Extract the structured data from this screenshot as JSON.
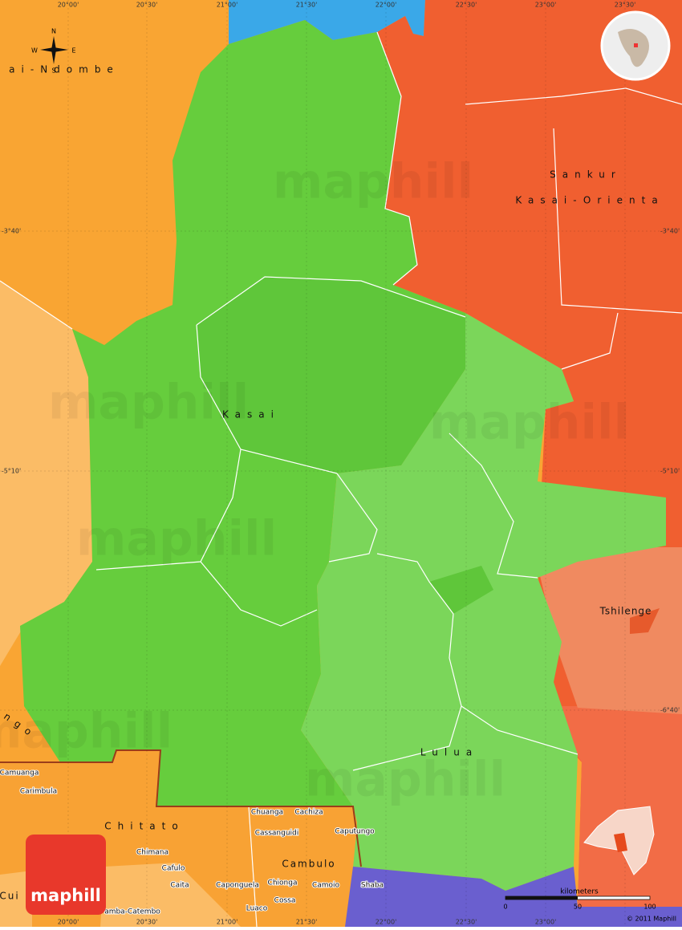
{
  "grid": {
    "longitudes": [
      "20°00'",
      "20°30'",
      "21°00'",
      "21°30'",
      "22°00'",
      "22°30'",
      "23°00'",
      "23°30'"
    ],
    "latitudes": [
      "-3°40'",
      "-5°10'",
      "-6°40'"
    ]
  },
  "regions": [
    "ai-Ndombe",
    "Sankur",
    "Kasai-Orienta",
    "Kasai",
    "Lulua",
    "Tshilenge",
    "ngo",
    "Chitato",
    "Cambulo",
    "Cui"
  ],
  "towns": [
    "Camuanga",
    "Carimbula",
    "Chimana",
    "Cafulo",
    "Caita",
    "amba-Catembo",
    "Caponguela",
    "Chionga",
    "Luaco",
    "Cossa",
    "Camoio",
    "Chuanga",
    "Cachiza",
    "Cassanguidi",
    "Caputungo",
    "Shaba"
  ],
  "compass": {
    "north": "N",
    "south": "S",
    "east": "E",
    "west": "W"
  },
  "scale": {
    "title": "kilometers",
    "ticks": [
      "0",
      "50",
      "100"
    ]
  },
  "copyright": "© 2011 Maphill",
  "logo": "maphill",
  "watermark": "maphill"
}
